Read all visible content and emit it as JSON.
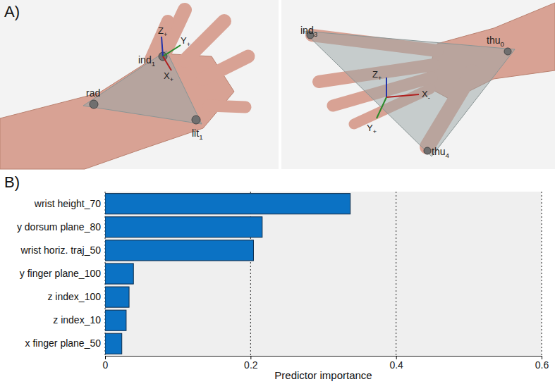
{
  "chart_data": {
    "type": "bar",
    "title": "B)",
    "orientation": "horizontal",
    "categories": [
      "wrist height_70",
      "y dorsum plane_80",
      "wrist horiz. traj_50",
      "y finger plane_100",
      "z index_100",
      "z index_10",
      "x finger plane_50"
    ],
    "values": [
      0.337,
      0.216,
      0.204,
      0.039,
      0.033,
      0.029,
      0.023
    ],
    "color": "#0b72c4",
    "x_label": "Predictor importance",
    "xlim": [
      0,
      0.6
    ],
    "xticks": [
      0,
      0.2,
      0.4,
      0.6
    ],
    "grid": true,
    "data_labels": false
  },
  "panel_a": {
    "label": "A)",
    "views": [
      {
        "points": [
          {
            "text": "ind",
            "sub": "1"
          },
          {
            "text": "rad",
            "sub": ""
          },
          {
            "text": "lit",
            "sub": "1"
          }
        ],
        "axes": [
          {
            "text": "Z",
            "sub": "+"
          },
          {
            "text": "Y",
            "sub": "+"
          },
          {
            "text": "X",
            "sub": "+"
          }
        ]
      },
      {
        "points": [
          {
            "text": "ind",
            "sub": "3"
          },
          {
            "text": "thu",
            "sub": "0"
          },
          {
            "text": "thu",
            "sub": "4"
          }
        ],
        "axes": [
          {
            "text": "Z",
            "sub": "+"
          },
          {
            "text": "X",
            "sub": "-"
          },
          {
            "text": "Y",
            "sub": "+"
          }
        ]
      }
    ]
  }
}
